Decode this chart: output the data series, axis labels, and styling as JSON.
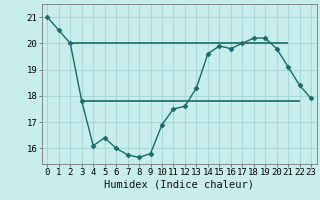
{
  "title": "",
  "xlabel": "Humidex (Indice chaleur)",
  "ylabel": "",
  "background_color": "#c8eded",
  "grid_color": "#aad8d8",
  "line_color": "#1a6b6b",
  "xlim": [
    -0.5,
    23.5
  ],
  "ylim": [
    15.4,
    21.5
  ],
  "yticks": [
    16,
    17,
    18,
    19,
    20,
    21
  ],
  "xticks": [
    0,
    1,
    2,
    3,
    4,
    5,
    6,
    7,
    8,
    9,
    10,
    11,
    12,
    13,
    14,
    15,
    16,
    17,
    18,
    19,
    20,
    21,
    22,
    23
  ],
  "x": [
    0,
    1,
    2,
    3,
    4,
    5,
    6,
    7,
    8,
    9,
    10,
    11,
    12,
    13,
    14,
    15,
    16,
    17,
    18,
    19,
    20,
    21,
    22,
    23
  ],
  "y": [
    21.0,
    20.5,
    20.0,
    17.8,
    16.1,
    16.4,
    16.0,
    15.75,
    15.65,
    15.8,
    16.9,
    17.5,
    17.6,
    18.3,
    19.6,
    19.9,
    19.8,
    20.0,
    20.2,
    20.2,
    19.8,
    19.1,
    18.4,
    17.9
  ],
  "hlines": [
    {
      "y": 20.0,
      "xmin": 2.0,
      "xmax": 21.0,
      "lw": 1.2
    },
    {
      "y": 17.8,
      "xmin": 3.0,
      "xmax": 22.0,
      "lw": 1.2
    }
  ],
  "tick_fontsize": 6.5,
  "xlabel_fontsize": 7.5
}
